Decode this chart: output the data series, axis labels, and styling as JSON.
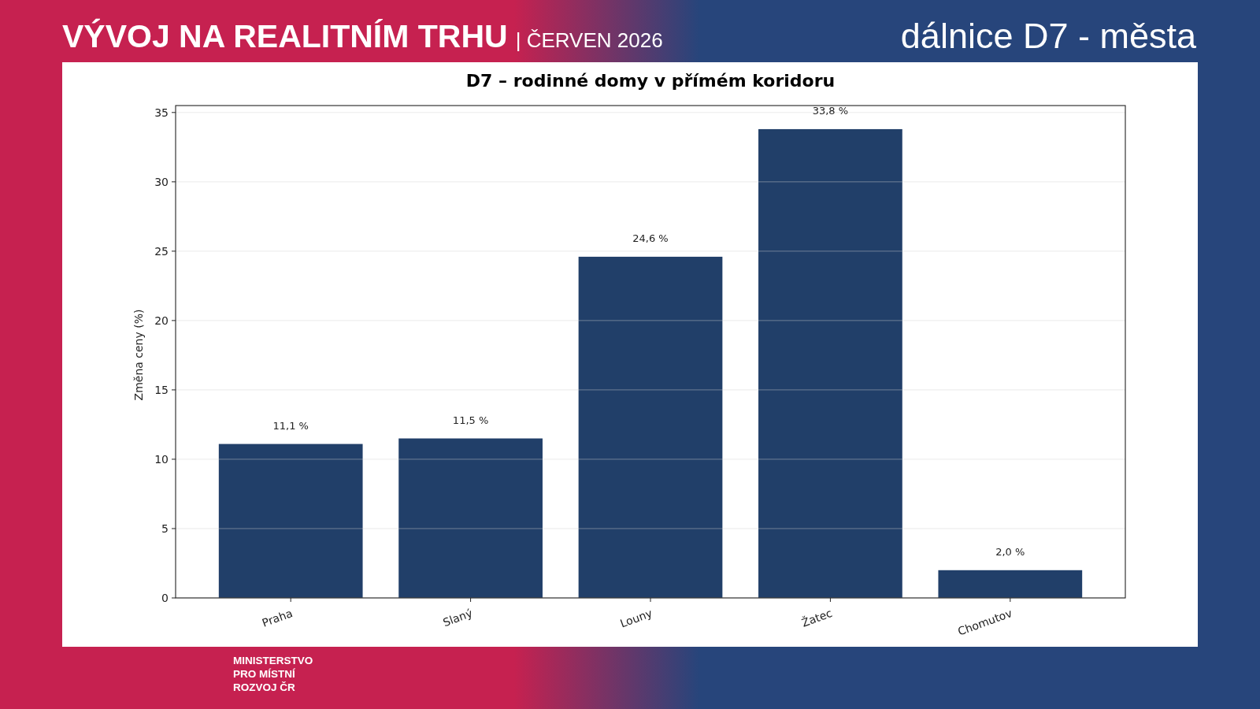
{
  "chart_data": {
    "type": "bar",
    "title": "D7 – rodinné domy v přímém koridoru",
    "ylabel": "Změna ceny (%)",
    "categories": [
      "Praha",
      "Slaný",
      "Louny",
      "Žatec",
      "Chomutov"
    ],
    "values": [
      11.1,
      11.5,
      24.6,
      33.8,
      2.0
    ],
    "value_labels": [
      "11,1 %",
      "11,5 %",
      "24,6 %",
      "33,8 %",
      "2,0 %"
    ],
    "color": "#213f69",
    "ylim": [
      0,
      35.5
    ],
    "yticks": [
      0,
      5,
      10,
      15,
      20,
      25,
      30,
      35
    ],
    "grid": "y",
    "annotations": [
      "VÝVOJ NA REALITNÍM TRHU",
      "| ČERVEN 2026",
      "dálnice D7 - města",
      "MINISTERSTVO\nPRO MÍSTNÍ\nROZVOJ ČR"
    ]
  }
}
